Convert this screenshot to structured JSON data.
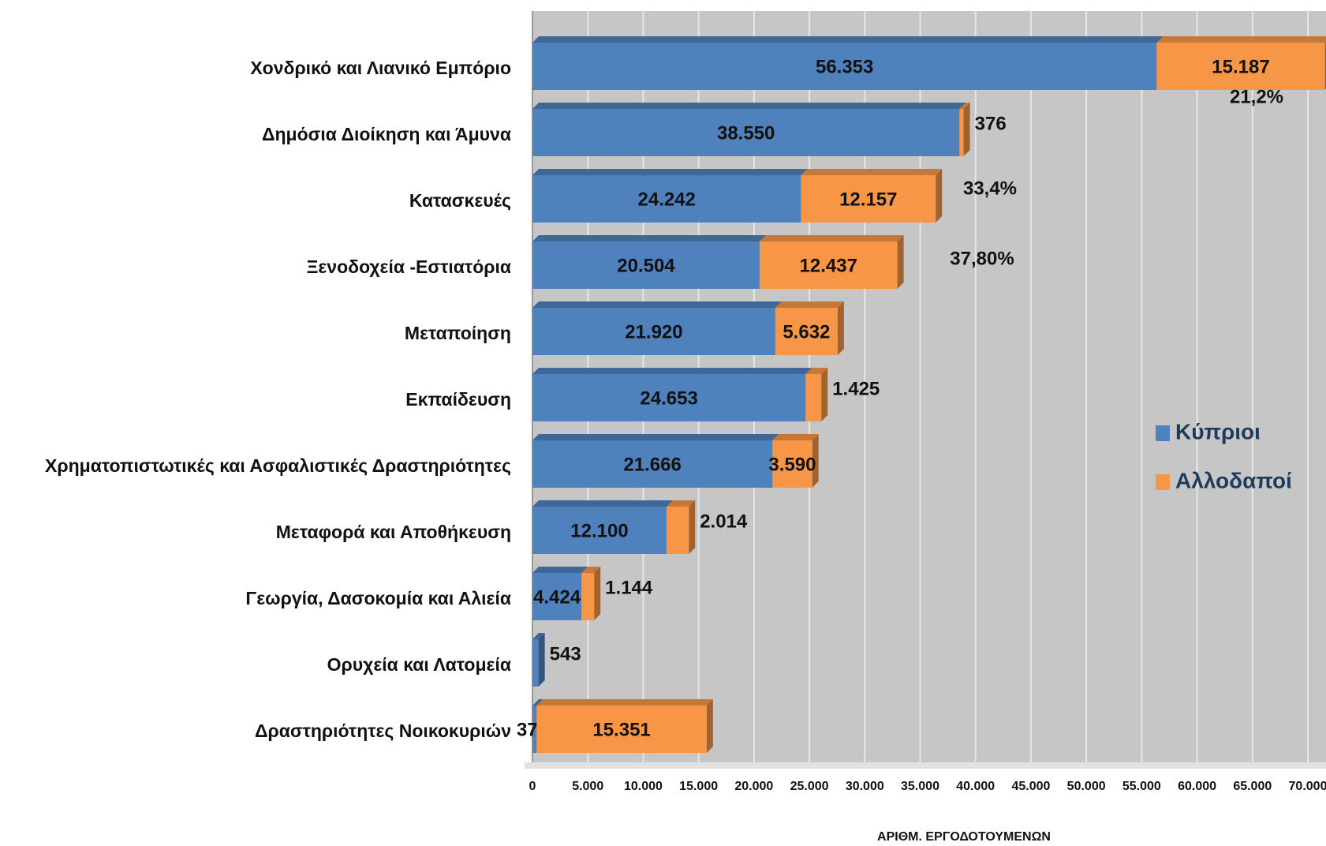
{
  "chart_data": {
    "type": "stacked-barh",
    "categories": [
      "Χονδρικό και Λιανικό Εμπόριο",
      "Δημόσια Διοίκηση και Άμυνα",
      "Κατασκευές",
      "Ξενοδοχεία -Εστιατόρια",
      "Μεταποίηση",
      "Εκπαίδευση",
      "Χρηματοπιστωτικές και Ασφαλιστικές Δραστηριότητες",
      "Μεταφορά και Αποθήκευση",
      "Γεωργία, Δασοκομία και Αλιεία",
      "Ορυχεία και Λατομεία",
      "Δραστηριότητες Νοικοκυριών"
    ],
    "series": [
      {
        "name": "Κύπριοι",
        "color": "#4f81bd",
        "values": [
          56353,
          38550,
          24242,
          20504,
          21920,
          24653,
          21666,
          12100,
          4424,
          543,
          376
        ],
        "value_labels": [
          "56.353",
          "38.550",
          "24.242",
          "20.504",
          "21.920",
          "24.653",
          "21.666",
          "12.100",
          "4.424",
          "543",
          "376"
        ]
      },
      {
        "name": "Αλλοδαποί",
        "color": "#f79646",
        "values": [
          15187,
          376,
          12157,
          12437,
          5632,
          1425,
          3590,
          2014,
          1144,
          null,
          15351
        ],
        "value_labels": [
          "15.187",
          "376",
          "12.157",
          "12.437",
          "5.632",
          "1.425",
          "3.590",
          "2.014",
          "1.144",
          null,
          "15.351"
        ]
      }
    ],
    "annotations": [
      "21,2%",
      "33,4%",
      "37,80%"
    ],
    "xlabel": "ΑΡΙΘΜ. ΕΡΓΟΔΟΤΟΥΜΕΝΩΝ",
    "xlim": [
      0,
      70000
    ],
    "xticks": [
      0,
      {
        "value": 5000,
        "label": "5.000"
      },
      {
        "value": 10000,
        "label": "10.000"
      },
      {
        "value": 15000,
        "label": "15.000"
      },
      {
        "value": 20000,
        "label": "20.000"
      },
      {
        "value": 25000,
        "label": "25.000"
      },
      {
        "value": 30000,
        "label": "30.000"
      },
      {
        "value": 35000,
        "label": "35.000"
      },
      {
        "value": 40000,
        "label": "40.000"
      },
      {
        "value": 45000,
        "label": "45.000"
      },
      {
        "value": 50000,
        "label": "50.000"
      },
      {
        "value": 55000,
        "label": "55.000"
      },
      {
        "value": 60000,
        "label": "60.000"
      },
      {
        "value": 65000,
        "label": "65.000"
      },
      {
        "value": 70000,
        "label": "70.000"
      }
    ],
    "grid": true,
    "legend": "right"
  }
}
